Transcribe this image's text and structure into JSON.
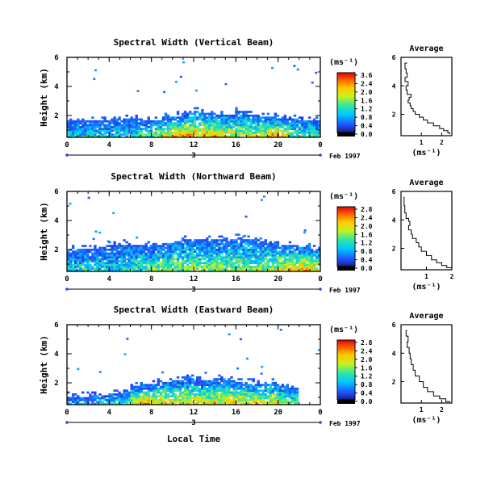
{
  "figure": {
    "xlabel_bottom": "Local Time",
    "date_label": "Feb 1997"
  },
  "chart_data": [
    {
      "type": "heatmap",
      "title": "Spectral Width (Vertical Beam)",
      "ylabel": "Height (km)",
      "yticks": [
        "6",
        "4",
        "2"
      ],
      "ylim": [
        0.5,
        6
      ],
      "xticks": [
        "0",
        "4",
        "8",
        "12",
        "16",
        "20",
        "0"
      ],
      "xlim": [
        0,
        24
      ],
      "day_label": "3",
      "colorbar_label": "(ms⁻¹)",
      "colorbar_ticks": [
        "3.6",
        "2.4",
        "2.0",
        "1.6",
        "1.2",
        "0.8",
        "0.4",
        "0.0"
      ],
      "clim": [
        0,
        3.6
      ],
      "coverage_top_km": [
        1.6,
        1.6,
        1.6,
        1.6,
        1.7,
        1.7,
        1.7,
        1.6,
        1.6,
        1.8,
        1.9,
        2.1,
        2.2,
        2.1,
        2.0,
        2.0,
        2.2,
        2.0,
        1.9,
        1.8,
        1.7,
        1.7,
        1.6,
        1.6
      ],
      "intensity_profile": [
        0.35,
        0.35,
        0.35,
        0.35,
        0.35,
        0.35,
        0.35,
        0.45,
        0.6,
        0.7,
        0.75,
        0.8,
        0.8,
        0.75,
        0.7,
        0.65,
        0.6,
        0.6,
        0.65,
        0.8,
        0.7,
        0.5,
        0.45,
        0.4
      ],
      "average_profile": {
        "title": "Average",
        "xlabel": "(ms⁻¹)",
        "xticks": [
          "1",
          "2"
        ],
        "xlim": [
          0,
          2.5
        ],
        "yticks": [
          "6",
          "4",
          "2"
        ],
        "ylim": [
          0.5,
          6
        ],
        "points": [
          [
            0.3,
            5.6
          ],
          [
            0.2,
            5.2
          ],
          [
            0.25,
            4.9
          ],
          [
            0.3,
            4.6
          ],
          [
            0.2,
            4.3
          ],
          [
            0.35,
            4.0
          ],
          [
            0.25,
            3.7
          ],
          [
            0.3,
            3.4
          ],
          [
            0.5,
            3.2
          ],
          [
            0.4,
            3.0
          ],
          [
            0.35,
            2.8
          ],
          [
            0.45,
            2.6
          ],
          [
            0.5,
            2.4
          ],
          [
            0.6,
            2.2
          ],
          [
            0.7,
            2.0
          ],
          [
            0.9,
            1.8
          ],
          [
            1.1,
            1.6
          ],
          [
            1.3,
            1.4
          ],
          [
            1.6,
            1.2
          ],
          [
            1.9,
            1.0
          ],
          [
            2.1,
            0.85
          ],
          [
            2.3,
            0.7
          ],
          [
            2.4,
            0.6
          ]
        ]
      }
    },
    {
      "type": "heatmap",
      "title": "Spectral Width (Northward Beam)",
      "ylabel": "Height (km)",
      "yticks": [
        "6",
        "4",
        "2"
      ],
      "ylim": [
        0.5,
        6
      ],
      "xticks": [
        "0",
        "4",
        "8",
        "12",
        "16",
        "20",
        "0"
      ],
      "xlim": [
        0,
        24
      ],
      "day_label": "3",
      "colorbar_label": "(ms⁻¹)",
      "colorbar_ticks": [
        "2.8",
        "2.4",
        "2.0",
        "1.6",
        "1.2",
        "0.8",
        "0.4",
        "0.0"
      ],
      "clim": [
        0,
        2.8
      ],
      "coverage_top_km": [
        1.9,
        2.0,
        2.0,
        2.1,
        2.2,
        2.3,
        2.2,
        2.2,
        2.3,
        2.4,
        2.5,
        2.6,
        2.6,
        2.7,
        2.6,
        2.6,
        2.7,
        2.6,
        2.5,
        2.4,
        2.3,
        2.2,
        2.1,
        2.0
      ],
      "intensity_profile": [
        0.35,
        0.35,
        0.35,
        0.35,
        0.35,
        0.4,
        0.45,
        0.5,
        0.55,
        0.55,
        0.55,
        0.55,
        0.55,
        0.55,
        0.55,
        0.55,
        0.55,
        0.55,
        0.55,
        0.6,
        0.7,
        0.75,
        0.75,
        0.7
      ],
      "average_profile": {
        "title": "Average",
        "xlabel": "(ms⁻¹)",
        "xticks": [
          "1",
          "2"
        ],
        "xlim": [
          0,
          2
        ],
        "yticks": [
          "6",
          "4",
          "2"
        ],
        "ylim": [
          0.5,
          6
        ],
        "points": [
          [
            0.1,
            5.6
          ],
          [
            0.12,
            5.0
          ],
          [
            0.15,
            4.5
          ],
          [
            0.2,
            4.1
          ],
          [
            0.3,
            3.9
          ],
          [
            0.35,
            3.6
          ],
          [
            0.3,
            3.3
          ],
          [
            0.4,
            3.0
          ],
          [
            0.45,
            2.7
          ],
          [
            0.6,
            2.4
          ],
          [
            0.7,
            2.1
          ],
          [
            0.8,
            1.8
          ],
          [
            1.0,
            1.5
          ],
          [
            1.2,
            1.2
          ],
          [
            1.4,
            1.0
          ],
          [
            1.6,
            0.8
          ],
          [
            1.8,
            0.65
          ],
          [
            2.0,
            0.55
          ]
        ]
      }
    },
    {
      "type": "heatmap",
      "title": "Spectral Width (Eastward Beam)",
      "ylabel": "Height (km)",
      "yticks": [
        "6",
        "4",
        "2"
      ],
      "ylim": [
        0.5,
        6
      ],
      "xticks": [
        "0",
        "4",
        "8",
        "12",
        "16",
        "20",
        "0"
      ],
      "xlim": [
        0,
        24
      ],
      "day_label": "3",
      "colorbar_label": "(ms⁻¹)",
      "colorbar_ticks": [
        "2.8",
        "2.4",
        "2.0",
        "1.6",
        "1.2",
        "0.8",
        "0.4",
        "0.0"
      ],
      "clim": [
        0,
        2.8
      ],
      "coverage_top_km": [
        1.0,
        1.0,
        1.1,
        1.1,
        1.2,
        1.3,
        1.7,
        1.8,
        1.9,
        2.0,
        2.1,
        2.2,
        2.1,
        2.1,
        2.2,
        2.1,
        2.0,
        1.9,
        1.8,
        1.9,
        1.7,
        1.6,
        0,
        0
      ],
      "intensity_profile": [
        0.3,
        0.3,
        0.3,
        0.35,
        0.4,
        0.45,
        0.65,
        0.8,
        0.75,
        0.7,
        0.7,
        0.7,
        0.7,
        0.7,
        0.7,
        0.7,
        0.7,
        0.7,
        0.7,
        0.7,
        0.55,
        0.5,
        0,
        0
      ],
      "average_profile": {
        "title": "Average",
        "xlabel": "(ms⁻¹)",
        "xticks": [
          "1",
          "2"
        ],
        "xlim": [
          0,
          2.5
        ],
        "yticks": [
          "6",
          "4",
          "2"
        ],
        "ylim": [
          0.5,
          6
        ],
        "points": [
          [
            0.3,
            5.6
          ],
          [
            0.25,
            5.2
          ],
          [
            0.35,
            4.8
          ],
          [
            0.3,
            4.4
          ],
          [
            0.4,
            4.0
          ],
          [
            0.45,
            3.6
          ],
          [
            0.5,
            3.2
          ],
          [
            0.6,
            2.8
          ],
          [
            0.7,
            2.4
          ],
          [
            0.9,
            2.0
          ],
          [
            1.1,
            1.6
          ],
          [
            1.3,
            1.3
          ],
          [
            1.6,
            1.0
          ],
          [
            1.9,
            0.8
          ],
          [
            2.2,
            0.6
          ],
          [
            2.4,
            0.55
          ]
        ]
      }
    }
  ]
}
